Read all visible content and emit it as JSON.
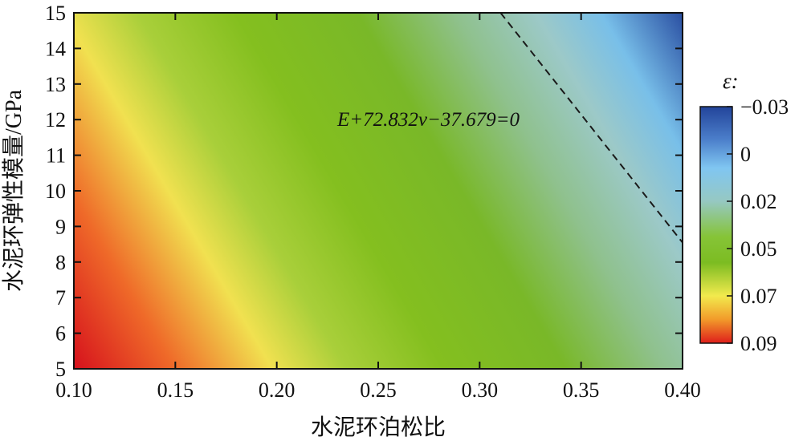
{
  "chart_data": {
    "type": "heatmap",
    "title": "",
    "xlabel": "水泥环泊松比",
    "ylabel": "水泥环弹性模量/GPa",
    "xlim": [
      0.1,
      0.4
    ],
    "ylim": [
      5,
      15
    ],
    "x_ticks": [
      "0.10",
      "0.15",
      "0.20",
      "0.25",
      "0.30",
      "0.35",
      "0.40"
    ],
    "y_ticks": [
      "5",
      "6",
      "7",
      "8",
      "9",
      "10",
      "11",
      "12",
      "13",
      "14",
      "15"
    ],
    "x_tick_values": [
      0.1,
      0.15,
      0.2,
      0.25,
      0.3,
      0.35,
      0.4
    ],
    "y_tick_values": [
      5,
      6,
      7,
      8,
      9,
      10,
      11,
      12,
      13,
      14,
      15
    ],
    "colorbar": {
      "title": "ε:",
      "tick_labels": [
        "−0.03",
        "0",
        "0.02",
        "0.05",
        "0.07",
        "0.09"
      ],
      "colors_top_to_bottom": [
        "#22449a",
        "#4f7fca",
        "#7cc3f0",
        "#95c8c9",
        "#8dc63f",
        "#6fae1d",
        "#f1eb4f",
        "#f39a2c",
        "#e0261e"
      ]
    },
    "surface_samples": [
      {
        "x": 0.1,
        "y": 5,
        "value": 0.09
      },
      {
        "x": 0.1,
        "y": 10,
        "value": 0.07
      },
      {
        "x": 0.1,
        "y": 15,
        "value": 0.05
      },
      {
        "x": 0.25,
        "y": 5,
        "value": 0.05
      },
      {
        "x": 0.25,
        "y": 12,
        "value": 0.04
      },
      {
        "x": 0.4,
        "y": 5,
        "value": 0.02
      },
      {
        "x": 0.4,
        "y": 10,
        "value": 0.01
      },
      {
        "x": 0.4,
        "y": 15,
        "value": -0.03
      }
    ],
    "boundary_line": {
      "label": "E+72.832ν−37.679=0",
      "points": [
        {
          "x": 0.3103,
          "y": 15
        },
        {
          "x": 0.4,
          "y": 8.546
        }
      ],
      "style": "dashed"
    },
    "grid": false
  }
}
